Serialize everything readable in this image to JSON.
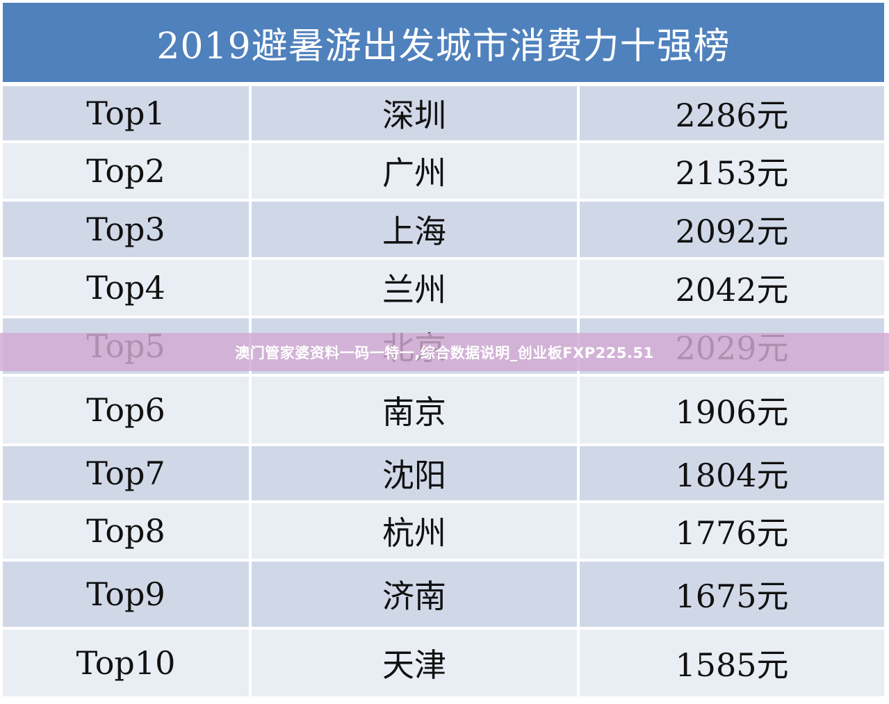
{
  "table": {
    "title": "2019避暑游出发城市消费力十强榜",
    "rows": [
      {
        "rank": "Top1",
        "city": "深圳",
        "amount": "2286元"
      },
      {
        "rank": "Top2",
        "city": "广州",
        "amount": "2153元"
      },
      {
        "rank": "Top3",
        "city": "上海",
        "amount": "2092元"
      },
      {
        "rank": "Top4",
        "city": "兰州",
        "amount": "2042元"
      },
      {
        "rank": "Top5",
        "city": "北京",
        "amount": "2029元"
      },
      {
        "rank": "Top6",
        "city": "南京",
        "amount": "1906元"
      },
      {
        "rank": "Top7",
        "city": "沈阳",
        "amount": "1804元"
      },
      {
        "rank": "Top8",
        "city": "杭州",
        "amount": "1776元"
      },
      {
        "rank": "Top9",
        "city": "济南",
        "amount": "1675元"
      },
      {
        "rank": "Top10",
        "city": "天津",
        "amount": "1585元"
      }
    ]
  },
  "overlay": {
    "caption": "澳门管家婆资料一码一特一,综合数据说明_创业板FXP225.51"
  },
  "colors": {
    "header_bg": "#4f81bd",
    "row_dark": "#d0d8e8",
    "row_light": "#e9edf4",
    "overlay_bg": "#d2aad2"
  }
}
